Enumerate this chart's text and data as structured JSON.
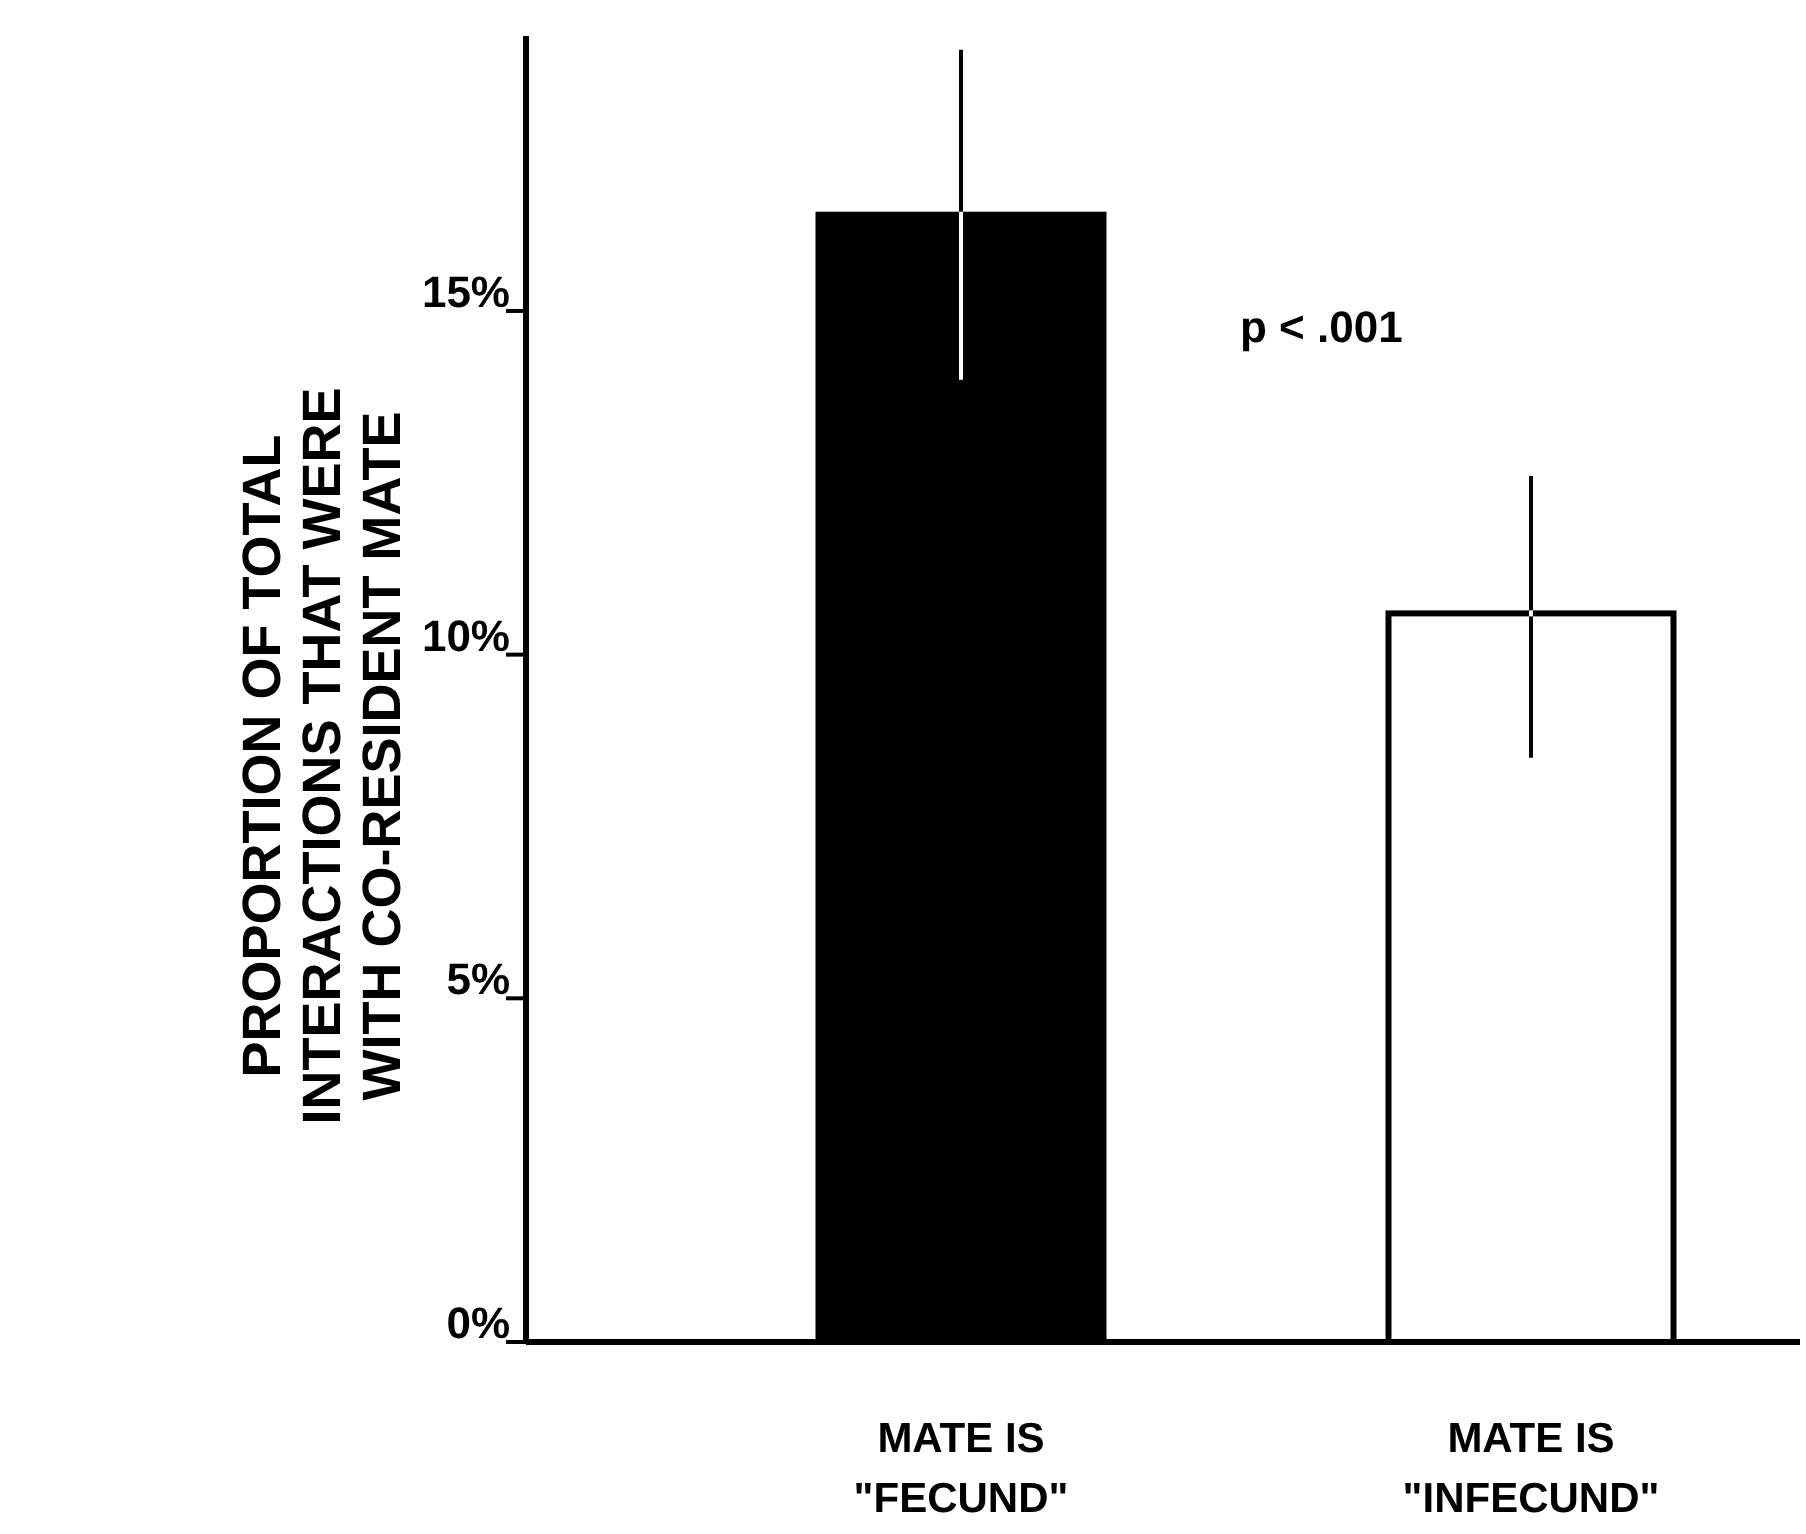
{
  "chart_data": {
    "type": "bar",
    "ylabel": "PROPORTION OF TOTAL\nINTERACTIONS THAT WERE\nWITH CO-RESIDENT MATE",
    "categories": [
      "MATE IS\n\"FECUND\"",
      "MATE IS\n\"INFECUND\""
    ],
    "values": [
      16.4,
      10.6
    ],
    "colors": [
      "#000000",
      "#ffffff"
    ],
    "errors": [
      [
        14.0,
        18.8
      ],
      [
        8.5,
        12.6
      ]
    ],
    "ylim": [
      0,
      19
    ],
    "yticks": [
      {
        "value": 0,
        "label": "0%"
      },
      {
        "value": 5,
        "label": "5%"
      },
      {
        "value": 10,
        "label": "10%"
      },
      {
        "value": 15,
        "label": "15%"
      }
    ],
    "annotations": [
      "p < .001"
    ],
    "grid": false
  }
}
